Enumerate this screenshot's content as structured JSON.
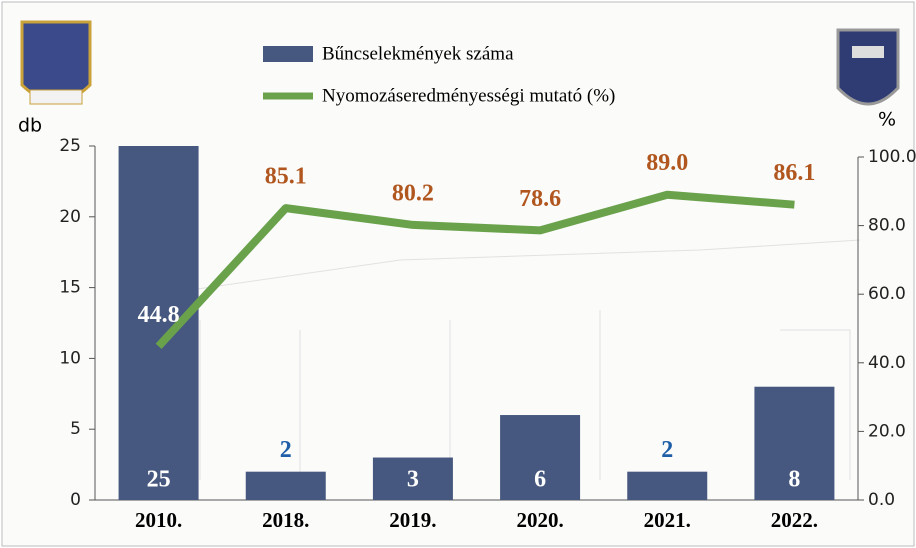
{
  "chart_data": {
    "type": "combo",
    "categories": [
      "2010.",
      "2018.",
      "2019.",
      "2020.",
      "2021.",
      "2022."
    ],
    "series": [
      {
        "name": "Bűncselekmények száma",
        "type": "bar",
        "color": "#46587f",
        "values": [
          25,
          2,
          3,
          6,
          2,
          8
        ]
      },
      {
        "name": "Nyomozáseredményességi mutató (%)",
        "type": "line",
        "axis": "y2",
        "color": "#6aa24c",
        "values": [
          44.8,
          85.1,
          80.2,
          78.6,
          89.0,
          86.1
        ],
        "value_labels": [
          "44.8",
          "85.1",
          "80.2",
          "78.6",
          "89.0",
          "86.1"
        ]
      }
    ],
    "ylabel": "db",
    "y2label": "%",
    "ylim": [
      0,
      25
    ],
    "yticks": [
      0,
      5,
      10,
      15,
      20,
      25
    ],
    "y2lim": [
      0,
      100
    ],
    "y2ticks": [
      {
        "value": 0,
        "label": "0.0"
      },
      {
        "value": 20,
        "label": "20.0"
      },
      {
        "value": 40,
        "label": "40.0"
      },
      {
        "value": 60,
        "label": "60.0"
      },
      {
        "value": 80,
        "label": "80.0"
      },
      {
        "value": 100,
        "label": "100.0"
      }
    ]
  }
}
